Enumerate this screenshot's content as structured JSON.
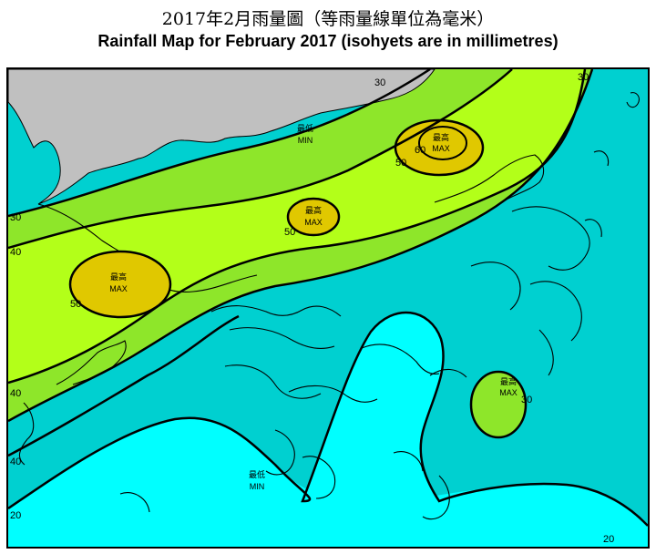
{
  "title": {
    "zh": "2017年2月雨量圖（等雨量線單位為毫米）",
    "en": "Rainfall Map for February 2017 (isohyets are in millimetres)"
  },
  "colors": {
    "band_20_30": "#00ffff",
    "band_30_40": "#00d0d0",
    "band_40_50": "#8ee62a",
    "band_50_60": "#b3ff19",
    "band_60_plus": "#e0c800",
    "land_mainland": "#c0c0c0",
    "isohyet": "#000000"
  },
  "isohyets": [
    {
      "value": "30",
      "labels": [
        "30",
        "30",
        "30",
        "30"
      ]
    },
    {
      "value": "40",
      "labels": [
        "40",
        "40",
        "40"
      ]
    },
    {
      "value": "50",
      "labels": [
        "50",
        "50",
        "50"
      ]
    },
    {
      "value": "60",
      "labels": [
        "60"
      ]
    },
    {
      "value": "20",
      "labels": [
        "20",
        "20"
      ]
    }
  ],
  "markers": {
    "max_zh": "最高",
    "max_en": "MAX",
    "min_zh": "最低",
    "min_en": "MIN"
  }
}
